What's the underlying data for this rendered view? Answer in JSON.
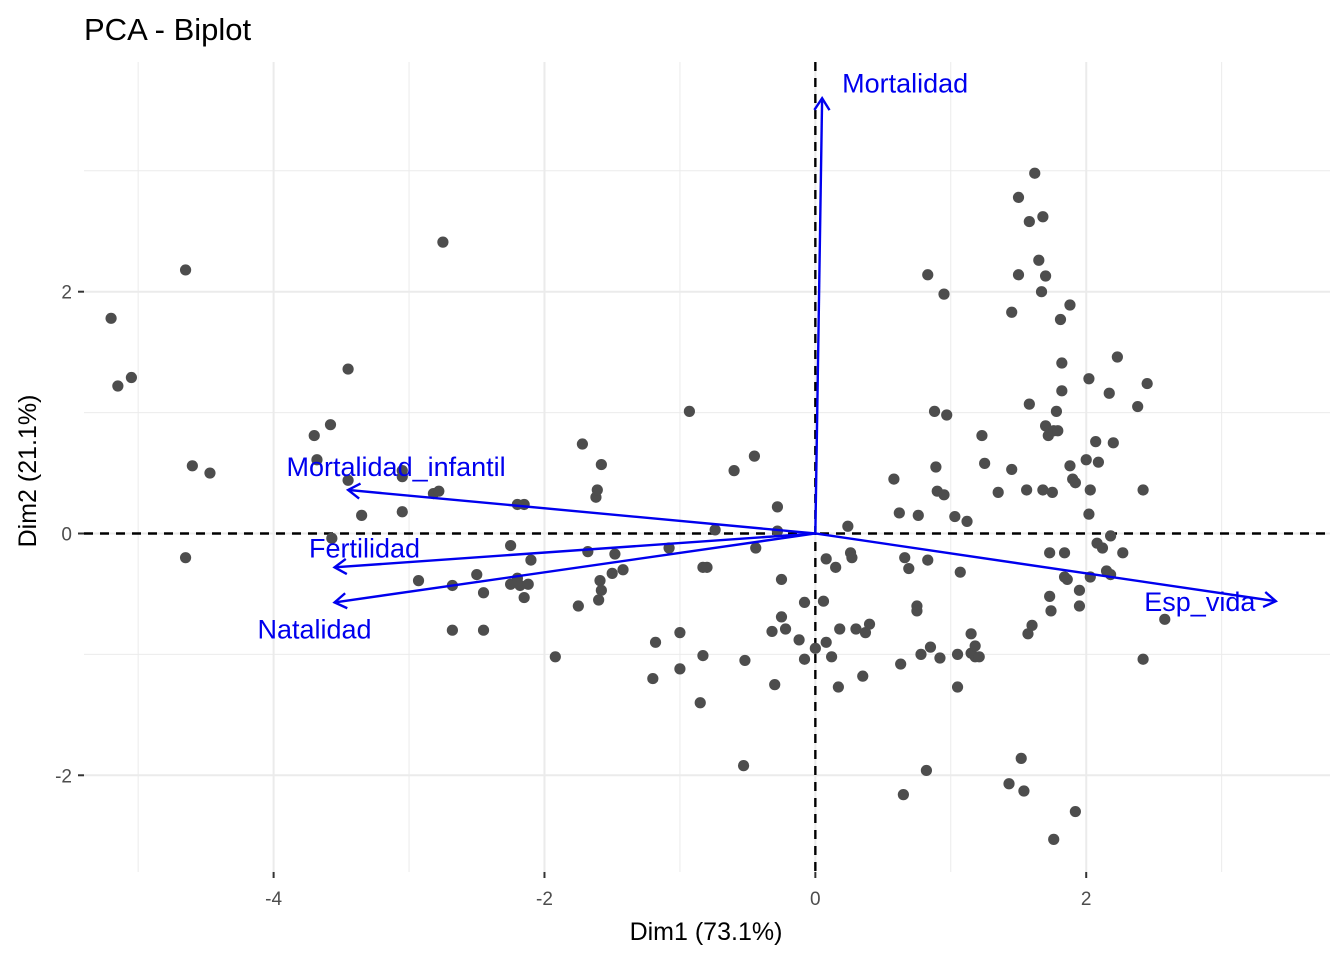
{
  "chart_data": {
    "type": "scatter",
    "title": "PCA - Biplot",
    "xlabel": "Dim1 (73.1%)",
    "ylabel": "Dim2 (21.1%)",
    "xlim": [
      -5.4,
      3.8
    ],
    "ylim": [
      -2.8,
      3.9
    ],
    "x_ticks": [
      -4,
      -2,
      0,
      2
    ],
    "y_ticks": [
      -2,
      0,
      2
    ],
    "x_tick_labels": [
      "-4",
      "-2",
      "0",
      "2"
    ],
    "y_tick_labels": [
      "-2",
      "0",
      "2"
    ],
    "grid": true,
    "colors": {
      "points": "#4d4d4d",
      "arrows": "#0000ee",
      "grid": "#ebebeb",
      "reference": "#000000"
    },
    "points": [
      [
        -5.2,
        1.78
      ],
      [
        -5.15,
        1.22
      ],
      [
        -5.05,
        1.29
      ],
      [
        -4.65,
        2.18
      ],
      [
        -4.6,
        0.56
      ],
      [
        -4.47,
        0.5
      ],
      [
        -4.65,
        -0.2
      ],
      [
        -3.7,
        0.81
      ],
      [
        -3.68,
        0.61
      ],
      [
        -3.58,
        0.9
      ],
      [
        -3.45,
        1.36
      ],
      [
        -3.45,
        0.44
      ],
      [
        -3.35,
        0.15
      ],
      [
        -3.57,
        -0.04
      ],
      [
        -3.05,
        0.52
      ],
      [
        -3.05,
        0.47
      ],
      [
        -3.05,
        0.18
      ],
      [
        -2.93,
        -0.39
      ],
      [
        -2.82,
        0.33
      ],
      [
        -2.78,
        0.35
      ],
      [
        -2.75,
        2.41
      ],
      [
        -2.68,
        -0.43
      ],
      [
        -2.68,
        -0.8
      ],
      [
        -2.5,
        -0.34
      ],
      [
        -2.45,
        -0.49
      ],
      [
        -2.45,
        -0.8
      ],
      [
        -2.25,
        -0.42
      ],
      [
        -2.25,
        -0.1
      ],
      [
        -2.2,
        0.24
      ],
      [
        -2.2,
        -0.37
      ],
      [
        -2.18,
        -0.43
      ],
      [
        -2.15,
        -0.53
      ],
      [
        -2.15,
        0.24
      ],
      [
        -2.12,
        -0.42
      ],
      [
        -2.1,
        -0.22
      ],
      [
        -1.92,
        -1.02
      ],
      [
        -1.75,
        -0.6
      ],
      [
        -1.72,
        0.74
      ],
      [
        -1.68,
        -0.15
      ],
      [
        -1.62,
        0.3
      ],
      [
        -1.61,
        0.36
      ],
      [
        -1.6,
        -0.55
      ],
      [
        -1.59,
        -0.39
      ],
      [
        -1.58,
        -0.47
      ],
      [
        -1.58,
        0.57
      ],
      [
        -1.5,
        -0.33
      ],
      [
        -1.48,
        -0.17
      ],
      [
        -1.42,
        -0.3
      ],
      [
        -1.18,
        -0.9
      ],
      [
        -1.2,
        -1.2
      ],
      [
        -1.08,
        -0.12
      ],
      [
        -1.0,
        -1.12
      ],
      [
        -1.0,
        -0.82
      ],
      [
        -0.93,
        1.01
      ],
      [
        -0.85,
        -1.4
      ],
      [
        -0.83,
        -1.01
      ],
      [
        -0.83,
        -0.28
      ],
      [
        -0.8,
        -0.28
      ],
      [
        -0.74,
        0.03
      ],
      [
        -0.6,
        0.52
      ],
      [
        -0.53,
        -1.92
      ],
      [
        -0.52,
        -1.05
      ],
      [
        -0.45,
        0.64
      ],
      [
        -0.44,
        -0.12
      ],
      [
        -0.32,
        -0.81
      ],
      [
        -0.3,
        -1.25
      ],
      [
        -0.28,
        0.22
      ],
      [
        -0.28,
        0.02
      ],
      [
        -0.25,
        -0.38
      ],
      [
        -0.25,
        -0.69
      ],
      [
        -0.22,
        -0.79
      ],
      [
        -0.12,
        -0.88
      ],
      [
        -0.08,
        -1.04
      ],
      [
        -0.08,
        -0.57
      ],
      [
        0.0,
        -0.95
      ],
      [
        0.06,
        -0.56
      ],
      [
        0.08,
        -0.21
      ],
      [
        0.08,
        -0.9
      ],
      [
        0.12,
        -1.02
      ],
      [
        0.15,
        -0.28
      ],
      [
        0.17,
        -1.27
      ],
      [
        0.18,
        -0.79
      ],
      [
        0.24,
        0.06
      ],
      [
        0.26,
        -0.16
      ],
      [
        0.27,
        -0.2
      ],
      [
        0.3,
        -0.79
      ],
      [
        0.35,
        -1.18
      ],
      [
        0.37,
        -0.82
      ],
      [
        0.4,
        -0.75
      ],
      [
        0.58,
        0.45
      ],
      [
        0.62,
        0.17
      ],
      [
        0.63,
        -1.08
      ],
      [
        0.65,
        -2.16
      ],
      [
        0.66,
        -0.2
      ],
      [
        0.69,
        -0.29
      ],
      [
        0.75,
        -0.6
      ],
      [
        0.75,
        -0.64
      ],
      [
        0.76,
        0.15
      ],
      [
        0.78,
        -1.0
      ],
      [
        0.82,
        -1.96
      ],
      [
        0.83,
        2.14
      ],
      [
        0.83,
        -0.22
      ],
      [
        0.85,
        -0.94
      ],
      [
        0.88,
        1.01
      ],
      [
        0.89,
        0.55
      ],
      [
        0.9,
        0.35
      ],
      [
        0.92,
        -1.03
      ],
      [
        0.95,
        0.32
      ],
      [
        0.95,
        1.98
      ],
      [
        0.97,
        0.98
      ],
      [
        1.03,
        0.14
      ],
      [
        1.05,
        -1.0
      ],
      [
        1.05,
        -1.27
      ],
      [
        1.07,
        -0.32
      ],
      [
        1.12,
        0.1
      ],
      [
        1.15,
        -0.83
      ],
      [
        1.15,
        -0.99
      ],
      [
        1.18,
        -0.93
      ],
      [
        1.18,
        -1.02
      ],
      [
        1.21,
        -1.02
      ],
      [
        1.23,
        0.81
      ],
      [
        1.25,
        0.58
      ],
      [
        1.35,
        0.34
      ],
      [
        1.43,
        -2.07
      ],
      [
        1.45,
        0.53
      ],
      [
        1.45,
        1.83
      ],
      [
        1.5,
        2.14
      ],
      [
        1.5,
        2.78
      ],
      [
        1.52,
        -1.86
      ],
      [
        1.54,
        -2.13
      ],
      [
        1.56,
        0.36
      ],
      [
        1.57,
        -0.83
      ],
      [
        1.58,
        1.07
      ],
      [
        1.58,
        2.58
      ],
      [
        1.6,
        -0.76
      ],
      [
        1.62,
        2.98
      ],
      [
        1.65,
        2.26
      ],
      [
        1.67,
        2.0
      ],
      [
        1.68,
        0.36
      ],
      [
        1.68,
        2.62
      ],
      [
        1.7,
        0.89
      ],
      [
        1.7,
        2.13
      ],
      [
        1.72,
        0.81
      ],
      [
        1.73,
        -0.16
      ],
      [
        1.73,
        -0.52
      ],
      [
        1.74,
        -0.64
      ],
      [
        1.75,
        0.34
      ],
      [
        1.76,
        0.85
      ],
      [
        1.76,
        -2.53
      ],
      [
        1.78,
        1.01
      ],
      [
        1.79,
        0.85
      ],
      [
        1.81,
        1.77
      ],
      [
        1.82,
        1.41
      ],
      [
        1.82,
        1.18
      ],
      [
        1.84,
        -0.36
      ],
      [
        1.84,
        -0.16
      ],
      [
        1.86,
        -0.38
      ],
      [
        1.88,
        1.89
      ],
      [
        1.88,
        0.56
      ],
      [
        1.9,
        0.45
      ],
      [
        1.92,
        0.42
      ],
      [
        1.92,
        -2.3
      ],
      [
        1.95,
        -0.6
      ],
      [
        1.95,
        -0.47
      ],
      [
        2.0,
        0.61
      ],
      [
        2.02,
        1.28
      ],
      [
        2.02,
        0.16
      ],
      [
        2.03,
        -0.36
      ],
      [
        2.03,
        0.36
      ],
      [
        2.07,
        0.76
      ],
      [
        2.08,
        -0.08
      ],
      [
        2.09,
        0.59
      ],
      [
        2.12,
        -0.12
      ],
      [
        2.15,
        -0.31
      ],
      [
        2.17,
        1.16
      ],
      [
        2.18,
        -0.34
      ],
      [
        2.18,
        -0.02
      ],
      [
        2.2,
        0.75
      ],
      [
        2.23,
        1.46
      ],
      [
        2.27,
        -0.16
      ],
      [
        2.38,
        1.05
      ],
      [
        2.42,
        -1.04
      ],
      [
        2.42,
        0.36
      ],
      [
        2.45,
        1.24
      ],
      [
        2.58,
        -0.71
      ]
    ],
    "variables": [
      {
        "name": "Mortalidad",
        "x": 0.05,
        "y": 3.6
      },
      {
        "name": "Mortalidad_infantil",
        "x": -3.45,
        "y": 0.36
      },
      {
        "name": "Fertilidad",
        "x": -3.55,
        "y": -0.28
      },
      {
        "name": "Natalidad",
        "x": -3.55,
        "y": -0.57
      },
      {
        "name": "Esp_vida",
        "x": 3.4,
        "y": -0.56
      }
    ]
  }
}
